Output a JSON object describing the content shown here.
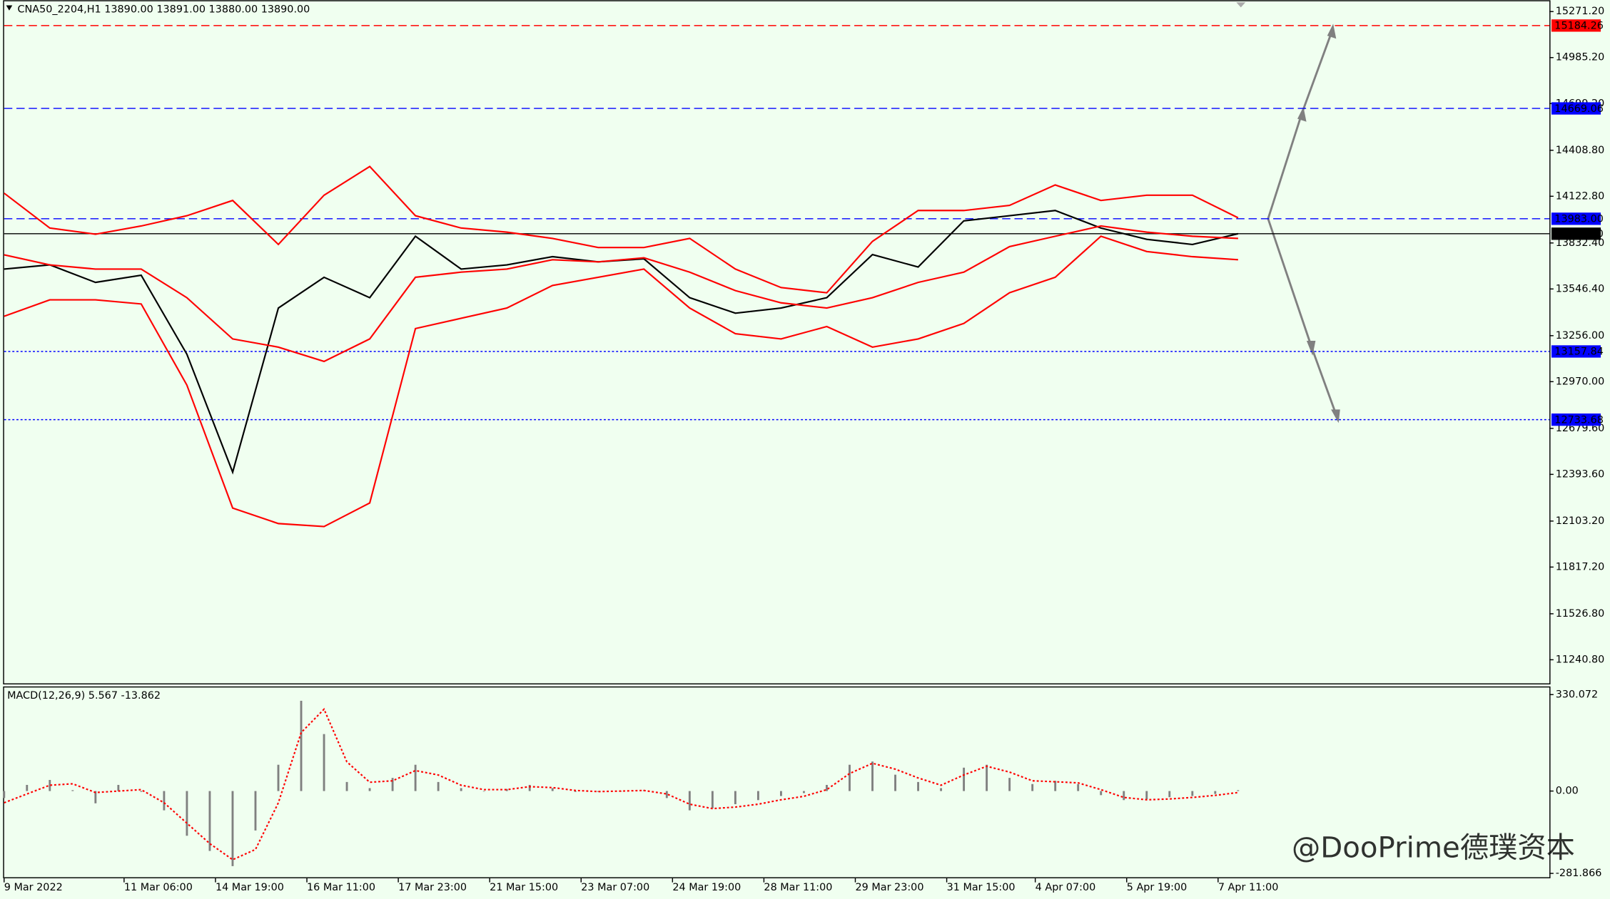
{
  "header": "CNA50_2204,H1  13890.00 13891.00 13880.00 13890.00",
  "watermark": "@DooPrime德璞资本",
  "chart_data": [
    {
      "type": "line",
      "xlim": [
        0,
        541
      ],
      "ylim": [
        11094,
        15329
      ],
      "x": [
        0,
        16,
        32,
        48,
        64,
        80,
        96,
        112,
        128,
        144,
        160,
        176,
        192,
        208,
        224,
        240,
        256,
        272,
        288,
        304,
        320,
        336,
        352,
        368,
        384,
        400,
        416,
        432
      ],
      "xticks": [
        {
          "value": 0,
          "label": "9 Mar 2022"
        },
        {
          "value": 42,
          "label": "11 Mar 06:00"
        },
        {
          "value": 74,
          "label": "14 Mar 19:00"
        },
        {
          "value": 106,
          "label": "16 Mar 11:00"
        },
        {
          "value": 138,
          "label": "17 Mar 23:00"
        },
        {
          "value": 170,
          "label": "21 Mar 15:00"
        },
        {
          "value": 202,
          "label": "23 Mar 07:00"
        },
        {
          "value": 234,
          "label": "24 Mar 19:00"
        },
        {
          "value": 266,
          "label": "28 Mar 11:00"
        },
        {
          "value": 298,
          "label": "29 Mar 23:00"
        },
        {
          "value": 330,
          "label": "31 Mar 15:00"
        },
        {
          "value": 361,
          "label": "4 Apr 07:00"
        },
        {
          "value": 393,
          "label": "5 Apr 19:00"
        },
        {
          "value": 425,
          "label": "7 Apr 11:00"
        }
      ],
      "yticks": [
        {
          "value": 15271.2,
          "label": "15271.20"
        },
        {
          "value": 14985.2,
          "label": "14985.20"
        },
        {
          "value": 14699.2,
          "label": "14699.20"
        },
        {
          "value": 14408.8,
          "label": "14408.80"
        },
        {
          "value": 14122.8,
          "label": "14122.80"
        },
        {
          "value": 13832.4,
          "label": "13832.40"
        },
        {
          "value": 13546.4,
          "label": "13546.40"
        },
        {
          "value": 13256,
          "label": "13256.00"
        },
        {
          "value": 12970,
          "label": "12970.00"
        },
        {
          "value": 12679.6,
          "label": "12679.60"
        },
        {
          "value": 12393.6,
          "label": "12393.60"
        },
        {
          "value": 12103.2,
          "label": "12103.20"
        },
        {
          "value": 11817.2,
          "label": "11817.20"
        },
        {
          "value": 11526.8,
          "label": "11526.80"
        },
        {
          "value": 11240.8,
          "label": "11240.80"
        }
      ],
      "series": [
        {
          "color": "#000000",
          "mark": "line",
          "values": [
            13670,
            13696,
            13587,
            13632,
            13141,
            12407,
            13428,
            13619,
            13492,
            13874,
            13670,
            13696,
            13747,
            13715,
            13734,
            13492,
            13396,
            13428,
            13492,
            13760,
            13683,
            13970,
            14002,
            14034,
            13925,
            13855,
            13823,
            13890
          ]
        },
        {
          "color": "#ff0000",
          "mark": "line",
          "values": [
            14142,
            13925,
            13887,
            13938,
            14002,
            14097,
            13823,
            14129,
            14308,
            14002,
            13925,
            13900,
            13861,
            13804,
            13804,
            13861,
            13670,
            13555,
            13523,
            13842,
            14034,
            14034,
            14066,
            14193,
            14097,
            14129,
            14129,
            13989
          ]
        },
        {
          "color": "#ff0000",
          "mark": "line",
          "values": [
            13759,
            13696,
            13670,
            13670,
            13492,
            13236,
            13185,
            13096,
            13236,
            13619,
            13651,
            13670,
            13728,
            13715,
            13740,
            13651,
            13536,
            13460,
            13428,
            13492,
            13587,
            13651,
            13810,
            13874,
            13938,
            13900,
            13874,
            13861
          ]
        },
        {
          "color": "#ff0000",
          "mark": "line",
          "values": [
            13377,
            13479,
            13479,
            13453,
            12949,
            12184,
            12088,
            12069,
            12216,
            13300,
            13364,
            13428,
            13568,
            13619,
            13670,
            13428,
            13268,
            13236,
            13313,
            13185,
            13236,
            13332,
            13523,
            13619,
            13874,
            13779,
            13747,
            13728
          ]
        }
      ],
      "levels": [
        {
          "value": 15184.26,
          "color": "#ff0000",
          "dash": "dashed"
        },
        {
          "value": 14669.06,
          "color": "#0000ff",
          "dash": "dashed"
        },
        {
          "value": 13983,
          "label": "13983.00",
          "color": "#0000ff",
          "dash": "dashed"
        },
        {
          "value": 13890,
          "label": "13890.00",
          "color": "#000000",
          "dash": "solid"
        },
        {
          "value": 13157.84,
          "color": "#0000ff",
          "dash": "dotted"
        },
        {
          "value": 12733.68,
          "color": "#0000ff",
          "dash": "dotted"
        }
      ]
    },
    {
      "type": "bar",
      "title": "MACD(12,26,9) 5.567 -13.862",
      "xlim": [
        0,
        541
      ],
      "ylim": [
        -295,
        351
      ],
      "x": [
        0,
        8,
        16,
        24,
        32,
        40,
        48,
        56,
        64,
        72,
        80,
        88,
        96,
        104,
        112,
        120,
        128,
        136,
        144,
        152,
        160,
        168,
        176,
        184,
        192,
        200,
        208,
        216,
        224,
        232,
        240,
        248,
        256,
        264,
        272,
        280,
        288,
        296,
        304,
        312,
        320,
        328,
        336,
        344,
        352,
        360,
        368,
        376,
        384,
        392,
        400,
        408,
        416,
        424,
        432
      ],
      "yticks": [
        330.072,
        {
          "value": 0,
          "label": "0.00"
        },
        -281.866
      ],
      "series": [
        {
          "color": "#808080",
          "mark": "bar",
          "values": [
            -24,
            21,
            38,
            3,
            -42,
            21,
            -3,
            -66,
            -153,
            -205,
            -257,
            -135,
            90,
            309,
            195,
            31,
            10,
            45,
            90,
            31,
            10,
            0,
            7,
            21,
            10,
            -3,
            -3,
            0,
            3,
            -24,
            -66,
            -59,
            -45,
            -31,
            -17,
            -7,
            21,
            90,
            101,
            56,
            31,
            10,
            80,
            90,
            45,
            24,
            35,
            24,
            -14,
            -31,
            -28,
            -21,
            -17,
            -10,
            3
          ]
        },
        {
          "color": "#ff0000",
          "mark": "line",
          "dash": "dotted",
          "values": [
            -40,
            -10,
            20,
            25,
            -5,
            0,
            5,
            -40,
            -110,
            -180,
            -235,
            -200,
            -40,
            200,
            280,
            100,
            30,
            35,
            70,
            55,
            20,
            5,
            5,
            15,
            12,
            2,
            -2,
            0,
            2,
            -10,
            -45,
            -60,
            -55,
            -45,
            -30,
            -18,
            5,
            60,
            95,
            75,
            45,
            20,
            55,
            85,
            65,
            35,
            32,
            28,
            5,
            -22,
            -30,
            -27,
            -22,
            -15,
            -5
          ]
        }
      ]
    }
  ]
}
